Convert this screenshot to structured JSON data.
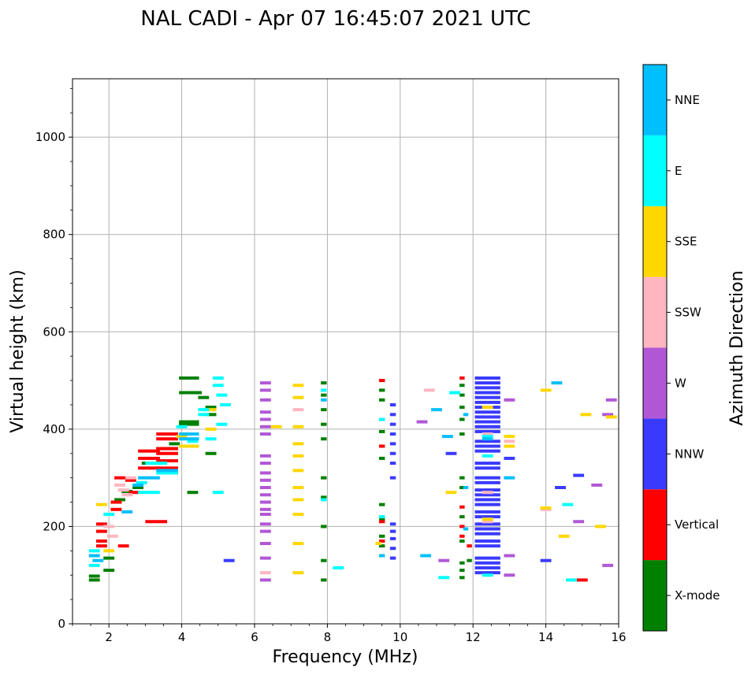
{
  "chart_data": {
    "type": "scatter",
    "title": "NAL CADI - Apr 07 16:45:07 2021 UTC",
    "xlabel": "Frequency (MHz)",
    "ylabel": "Virtual height (km)",
    "xlim": [
      1,
      16
    ],
    "ylim": [
      0,
      1120
    ],
    "xticks": [
      2,
      4,
      6,
      8,
      10,
      12,
      14,
      16
    ],
    "yticks": [
      0,
      200,
      400,
      600,
      800,
      1000
    ],
    "grid": true,
    "colorbar": {
      "title": "Azimuth Direction",
      "categories": [
        {
          "label": "X-mode",
          "color": "#008000"
        },
        {
          "label": "Vertical",
          "color": "#ff0000"
        },
        {
          "label": "NNW",
          "color": "#3a3aff"
        },
        {
          "label": "W",
          "color": "#b157d6"
        },
        {
          "label": "SSW",
          "color": "#ffb6c1"
        },
        {
          "label": "SSE",
          "color": "#ffd700"
        },
        {
          "label": "E",
          "color": "#00ffff"
        },
        {
          "label": "NNE",
          "color": "#00bfff"
        }
      ]
    },
    "series": [
      {
        "name": "X-mode",
        "points": [
          [
            1.6,
            90
          ],
          [
            1.6,
            98
          ],
          [
            2.0,
            110
          ],
          [
            2.0,
            135
          ],
          [
            2.3,
            255
          ],
          [
            2.5,
            272
          ],
          [
            2.8,
            280
          ],
          [
            3.2,
            330
          ],
          [
            3.6,
            360
          ],
          [
            3.8,
            370
          ],
          [
            4.2,
            505
          ],
          [
            4.2,
            475
          ],
          [
            4.2,
            415
          ],
          [
            4.2,
            410
          ],
          [
            4.3,
            270
          ],
          [
            4.4,
            475
          ],
          [
            4.6,
            465
          ],
          [
            4.8,
            445
          ],
          [
            4.8,
            430
          ],
          [
            4.8,
            350
          ],
          [
            7.9,
            495
          ],
          [
            7.9,
            470
          ],
          [
            7.9,
            440
          ],
          [
            7.9,
            410
          ],
          [
            7.9,
            380
          ],
          [
            7.9,
            300
          ],
          [
            7.9,
            260
          ],
          [
            7.9,
            200
          ],
          [
            7.9,
            130
          ],
          [
            7.9,
            90
          ],
          [
            9.5,
            480
          ],
          [
            9.5,
            460
          ],
          [
            9.5,
            395
          ],
          [
            9.5,
            340
          ],
          [
            9.5,
            245
          ],
          [
            9.5,
            215
          ],
          [
            9.5,
            180
          ],
          [
            9.5,
            160
          ],
          [
            11.7,
            490
          ],
          [
            11.7,
            470
          ],
          [
            11.7,
            445
          ],
          [
            11.7,
            420
          ],
          [
            11.7,
            390
          ],
          [
            11.7,
            300
          ],
          [
            11.7,
            280
          ],
          [
            11.7,
            220
          ],
          [
            11.7,
            170
          ],
          [
            11.7,
            125
          ],
          [
            11.7,
            110
          ],
          [
            11.7,
            95
          ],
          [
            11.9,
            130
          ]
        ]
      },
      {
        "name": "Vertical",
        "points": [
          [
            1.8,
            205
          ],
          [
            1.8,
            190
          ],
          [
            1.8,
            170
          ],
          [
            1.8,
            160
          ],
          [
            2.2,
            250
          ],
          [
            2.2,
            235
          ],
          [
            2.3,
            300
          ],
          [
            2.4,
            160
          ],
          [
            2.6,
            295
          ],
          [
            2.7,
            270
          ],
          [
            3.1,
            355
          ],
          [
            3.1,
            340
          ],
          [
            3.1,
            320
          ],
          [
            3.3,
            210
          ],
          [
            3.6,
            390
          ],
          [
            3.6,
            380
          ],
          [
            3.6,
            360
          ],
          [
            3.6,
            350
          ],
          [
            3.6,
            335
          ],
          [
            3.6,
            320
          ],
          [
            9.5,
            500
          ],
          [
            9.5,
            365
          ],
          [
            9.5,
            210
          ],
          [
            9.5,
            170
          ],
          [
            11.7,
            505
          ],
          [
            11.7,
            240
          ],
          [
            11.7,
            200
          ],
          [
            11.7,
            180
          ],
          [
            11.9,
            160
          ],
          [
            15.0,
            90
          ]
        ]
      },
      {
        "name": "NNW",
        "points": [
          [
            5.3,
            130
          ],
          [
            9.8,
            450
          ],
          [
            9.8,
            430
          ],
          [
            9.8,
            410
          ],
          [
            9.8,
            390
          ],
          [
            9.8,
            370
          ],
          [
            9.8,
            350
          ],
          [
            9.8,
            330
          ],
          [
            9.8,
            300
          ],
          [
            9.8,
            205
          ],
          [
            9.8,
            190
          ],
          [
            9.8,
            175
          ],
          [
            9.8,
            155
          ],
          [
            9.8,
            135
          ],
          [
            12.4,
            505
          ],
          [
            12.4,
            495
          ],
          [
            12.4,
            485
          ],
          [
            12.4,
            475
          ],
          [
            12.4,
            465
          ],
          [
            12.4,
            455
          ],
          [
            12.4,
            445
          ],
          [
            12.4,
            435
          ],
          [
            12.4,
            425
          ],
          [
            12.4,
            415
          ],
          [
            12.4,
            405
          ],
          [
            12.4,
            395
          ],
          [
            12.4,
            375
          ],
          [
            12.4,
            365
          ],
          [
            12.4,
            355
          ],
          [
            12.4,
            330
          ],
          [
            12.4,
            320
          ],
          [
            12.4,
            300
          ],
          [
            12.4,
            290
          ],
          [
            12.4,
            275
          ],
          [
            12.4,
            265
          ],
          [
            12.4,
            255
          ],
          [
            12.4,
            245
          ],
          [
            12.4,
            230
          ],
          [
            12.4,
            220
          ],
          [
            12.4,
            205
          ],
          [
            12.4,
            195
          ],
          [
            12.4,
            185
          ],
          [
            12.4,
            170
          ],
          [
            12.4,
            160
          ],
          [
            12.4,
            135
          ],
          [
            12.4,
            125
          ],
          [
            12.4,
            115
          ],
          [
            12.4,
            105
          ],
          [
            13.0,
            340
          ],
          [
            14.0,
            130
          ],
          [
            14.4,
            280
          ],
          [
            14.9,
            305
          ],
          [
            11.4,
            350
          ]
        ]
      },
      {
        "name": "W",
        "points": [
          [
            6.3,
            495
          ],
          [
            6.3,
            480
          ],
          [
            6.3,
            460
          ],
          [
            6.3,
            435
          ],
          [
            6.3,
            420
          ],
          [
            6.3,
            405
          ],
          [
            6.3,
            390
          ],
          [
            6.3,
            345
          ],
          [
            6.3,
            330
          ],
          [
            6.3,
            310
          ],
          [
            6.3,
            295
          ],
          [
            6.3,
            280
          ],
          [
            6.3,
            265
          ],
          [
            6.3,
            250
          ],
          [
            6.3,
            235
          ],
          [
            6.3,
            225
          ],
          [
            6.3,
            205
          ],
          [
            6.3,
            190
          ],
          [
            6.3,
            165
          ],
          [
            6.3,
            135
          ],
          [
            6.3,
            90
          ],
          [
            10.6,
            415
          ],
          [
            13.0,
            460
          ],
          [
            13.0,
            140
          ],
          [
            13.0,
            100
          ],
          [
            14.9,
            210
          ],
          [
            15.4,
            285
          ],
          [
            15.7,
            120
          ],
          [
            15.8,
            460
          ],
          [
            15.7,
            430
          ],
          [
            11.2,
            130
          ]
        ]
      },
      {
        "name": "SSW",
        "points": [
          [
            2.0,
            200
          ],
          [
            2.1,
            180
          ],
          [
            2.3,
            285
          ],
          [
            2.4,
            275
          ],
          [
            2.5,
            265
          ],
          [
            2.6,
            300
          ],
          [
            7.2,
            440
          ],
          [
            10.8,
            480
          ],
          [
            12.4,
            390
          ],
          [
            12.4,
            270
          ],
          [
            12.4,
            210
          ],
          [
            6.3,
            105
          ],
          [
            13.0,
            375
          ],
          [
            14.0,
            235
          ]
        ]
      },
      {
        "name": "SSE",
        "points": [
          [
            1.8,
            245
          ],
          [
            2.0,
            150
          ],
          [
            4.0,
            385
          ],
          [
            4.2,
            365
          ],
          [
            4.8,
            440
          ],
          [
            4.8,
            400
          ],
          [
            6.6,
            405
          ],
          [
            7.2,
            490
          ],
          [
            7.2,
            465
          ],
          [
            7.2,
            405
          ],
          [
            7.2,
            370
          ],
          [
            7.2,
            345
          ],
          [
            7.2,
            315
          ],
          [
            7.2,
            280
          ],
          [
            7.2,
            255
          ],
          [
            7.2,
            225
          ],
          [
            7.2,
            165
          ],
          [
            7.2,
            105
          ],
          [
            9.4,
            165
          ],
          [
            11.4,
            270
          ],
          [
            12.4,
            445
          ],
          [
            12.4,
            215
          ],
          [
            13.0,
            385
          ],
          [
            13.0,
            365
          ],
          [
            14.0,
            480
          ],
          [
            14.0,
            238
          ],
          [
            14.5,
            180
          ],
          [
            15.1,
            430
          ],
          [
            15.5,
            200
          ],
          [
            15.8,
            425
          ]
        ]
      },
      {
        "name": "E",
        "points": [
          [
            1.6,
            150
          ],
          [
            1.6,
            120
          ],
          [
            2.0,
            225
          ],
          [
            2.9,
            290
          ],
          [
            3.1,
            270
          ],
          [
            3.3,
            330
          ],
          [
            3.6,
            310
          ],
          [
            4.0,
            405
          ],
          [
            4.3,
            375
          ],
          [
            4.6,
            440
          ],
          [
            4.6,
            430
          ],
          [
            5.0,
            505
          ],
          [
            5.0,
            490
          ],
          [
            5.1,
            470
          ],
          [
            5.2,
            450
          ],
          [
            5.1,
            410
          ],
          [
            5.0,
            270
          ],
          [
            4.8,
            380
          ],
          [
            7.9,
            480
          ],
          [
            7.9,
            255
          ],
          [
            8.3,
            115
          ],
          [
            9.5,
            420
          ],
          [
            9.5,
            220
          ],
          [
            11.2,
            95
          ],
          [
            11.5,
            475
          ],
          [
            12.4,
            385
          ],
          [
            12.4,
            345
          ],
          [
            12.4,
            100
          ],
          [
            14.7,
            90
          ],
          [
            14.6,
            245
          ]
        ]
      },
      {
        "name": "NNE",
        "points": [
          [
            1.6,
            140
          ],
          [
            1.7,
            130
          ],
          [
            2.5,
            230
          ],
          [
            2.8,
            285
          ],
          [
            3.1,
            300
          ],
          [
            3.6,
            315
          ],
          [
            4.2,
            390
          ],
          [
            4.2,
            380
          ],
          [
            9.5,
            140
          ],
          [
            10.7,
            140
          ],
          [
            11.3,
            385
          ],
          [
            11.8,
            195
          ],
          [
            11.8,
            430
          ],
          [
            12.4,
            380
          ],
          [
            13.0,
            300
          ],
          [
            14.3,
            495
          ],
          [
            11.8,
            280
          ],
          [
            11.0,
            440
          ],
          [
            7.9,
            460
          ]
        ]
      }
    ]
  }
}
